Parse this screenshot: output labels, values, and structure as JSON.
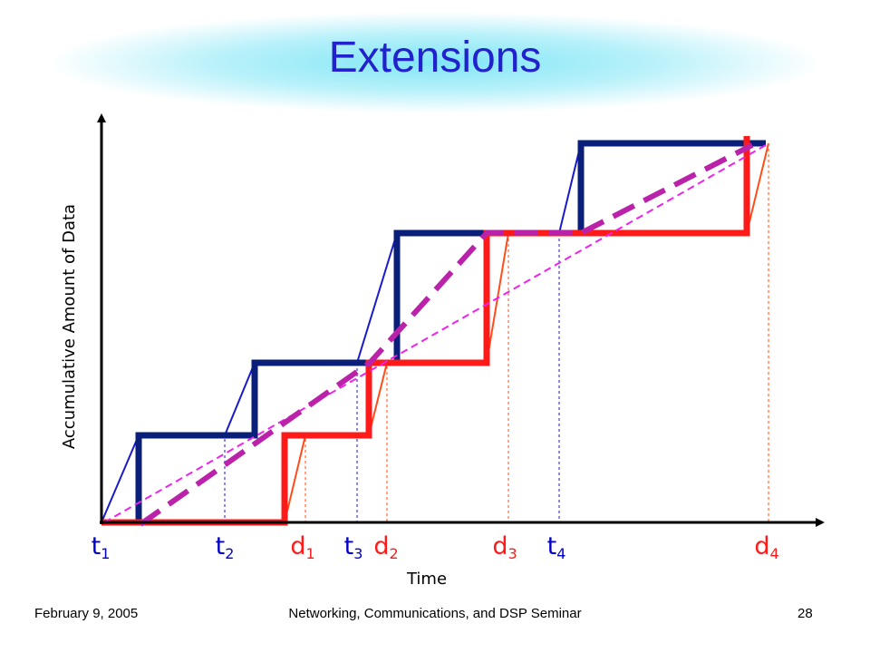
{
  "slide": {
    "title": "Extensions",
    "footer_date": "February 9, 2005",
    "footer_seminar": "Networking, Communications, and DSP Seminar",
    "page_number": "28"
  },
  "diagram": {
    "ylabel": "Accumulative Amount of Data",
    "xlabel": "Time",
    "marks": [
      {
        "id": "t1",
        "base": "t",
        "sub": "1",
        "color": "#0000cc"
      },
      {
        "id": "t2",
        "base": "t",
        "sub": "2",
        "color": "#0000cc"
      },
      {
        "id": "d1",
        "base": "d",
        "sub": "1",
        "color": "#ff1a1a"
      },
      {
        "id": "t3",
        "base": "t",
        "sub": "3",
        "color": "#0000cc"
      },
      {
        "id": "d2",
        "base": "d",
        "sub": "2",
        "color": "#ff1a1a"
      },
      {
        "id": "d3",
        "base": "d",
        "sub": "3",
        "color": "#ff1a1a"
      },
      {
        "id": "t4",
        "base": "t",
        "sub": "4",
        "color": "#0000cc"
      },
      {
        "id": "d4",
        "base": "d",
        "sub": "4",
        "color": "#ff1a1a"
      }
    ],
    "colors": {
      "arrival": "#0a1f7a",
      "arrival_thin": "#1a1acc",
      "deadline": "#ff1a1a",
      "deadline_thin": "#ff4d1a",
      "average": "#bb22aa",
      "average_thin": "#ee22ee",
      "axis": "#000000"
    }
  }
}
